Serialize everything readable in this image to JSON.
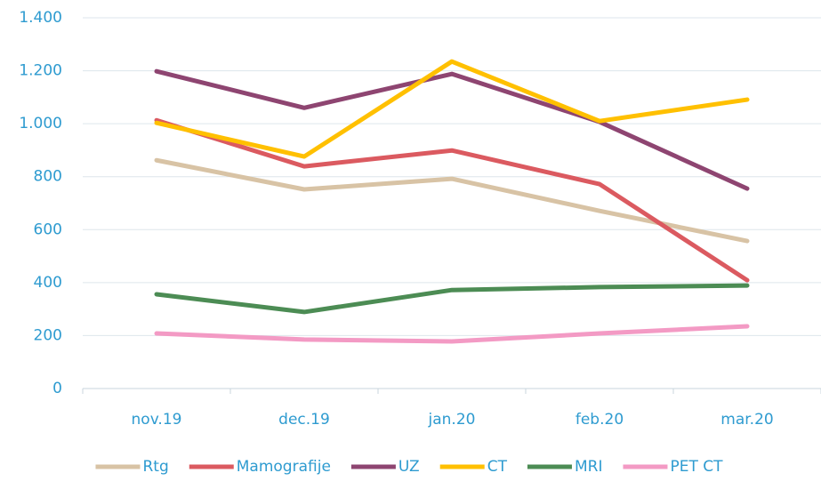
{
  "chart_data": {
    "type": "line",
    "categories": [
      "nov.19",
      "dec.19",
      "jan.20",
      "feb.20",
      "mar.20"
    ],
    "series": [
      {
        "name": "Rtg",
        "color": "#d8c3a5",
        "values": [
          862,
          752,
          792,
          671,
          557
        ]
      },
      {
        "name": "Mamografije",
        "color": "#db5a60",
        "values": [
          1013,
          839,
          899,
          772,
          409
        ]
      },
      {
        "name": "UZ",
        "color": "#8e4571",
        "values": [
          1198,
          1060,
          1188,
          1007,
          755
        ]
      },
      {
        "name": "CT",
        "color": "#ffc000",
        "values": [
          1003,
          876,
          1235,
          1010,
          1091
        ]
      },
      {
        "name": "MRI",
        "color": "#4c8c54",
        "values": [
          356,
          289,
          372,
          383,
          389
        ]
      },
      {
        "name": "PET CT",
        "color": "#f39ac4",
        "values": [
          208,
          185,
          178,
          208,
          235
        ]
      }
    ],
    "ylim": [
      0,
      1400
    ],
    "yticks": [
      0,
      200,
      400,
      600,
      800,
      {
        "value": 1000,
        "label": "1.000"
      },
      {
        "value": 1200,
        "label": "1.200"
      },
      {
        "value": 1400,
        "label": "1.400"
      }
    ],
    "grid": true,
    "legend": "bottom"
  }
}
